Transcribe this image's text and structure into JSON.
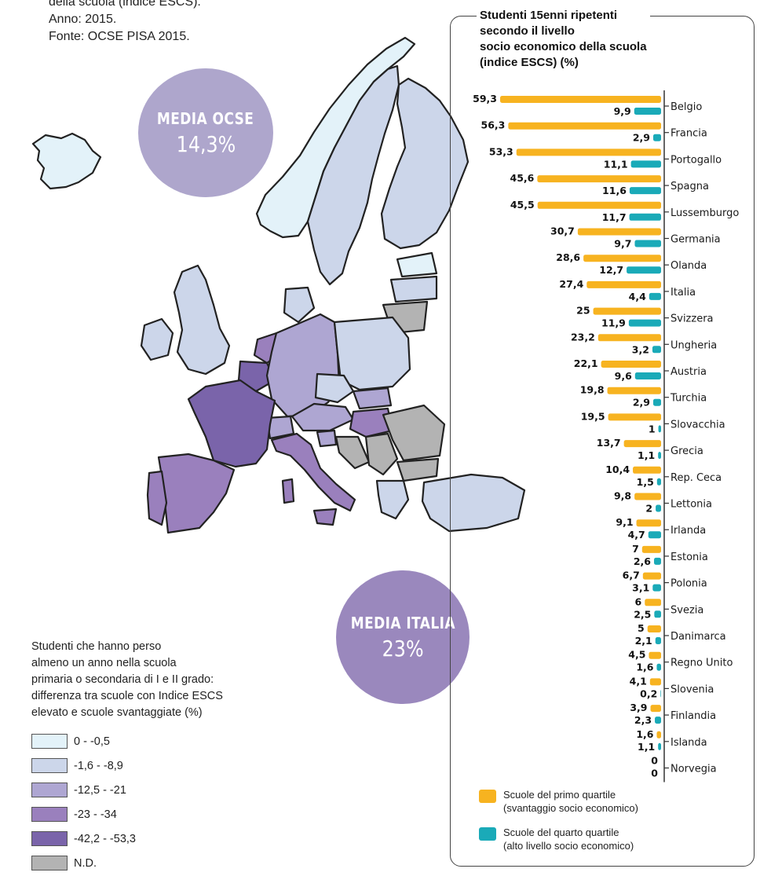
{
  "caption": {
    "line1": "della scuola (indice ESCS).",
    "line2": "Anno: 2015.",
    "line3": "Fonte: OCSE PISA 2015."
  },
  "bubbles": {
    "ocse": {
      "title": "MEDIA OCSE",
      "value": "14,3%"
    },
    "italia": {
      "title": "MEDIA ITALIA",
      "value": "23%"
    }
  },
  "map_legend": {
    "title_line1": "Studenti che hanno perso",
    "title_line2": "almeno un anno nella scuola",
    "title_line3": "primaria o secondaria di I e II grado:",
    "title_line4": "differenza tra scuole con Indice ESCS",
    "title_line5": "elevato e scuole svantaggiate (%)",
    "classes": [
      {
        "label": "0 - -0,5",
        "color": "#e3f2f9"
      },
      {
        "label": "-1,6 - -8,9",
        "color": "#ccd6ea"
      },
      {
        "label": "-12,5 - -21",
        "color": "#aea6d2"
      },
      {
        "label": "-23 - -34",
        "color": "#9a80bd"
      },
      {
        "label": "-42,2 - -53,3",
        "color": "#7a64aa"
      },
      {
        "label": "N.D.",
        "color": "#b3b3b3"
      }
    ]
  },
  "colors": {
    "first_quartile": "#f7b320",
    "fourth_quartile": "#1aaab8",
    "sea_border": "#1f1f1f"
  },
  "chart_title": {
    "line1": "Studenti 15enni ripetenti",
    "line2": "secondo il livello",
    "line3": "socio economico della scuola",
    "line4": "(indice ESCS) (%)"
  },
  "chart_data": {
    "type": "bar",
    "orientation": "horizontal",
    "title": "Studenti 15enni ripetenti secondo il livello socio economico della scuola (indice ESCS) (%)",
    "categories": [
      "Belgio",
      "Francia",
      "Portogallo",
      "Spagna",
      "Lussemburgo",
      "Germania",
      "Olanda",
      "Italia",
      "Svizzera",
      "Ungheria",
      "Austria",
      "Turchia",
      "Slovacchia",
      "Grecia",
      "Rep. Ceca",
      "Lettonia",
      "Irlanda",
      "Estonia",
      "Polonia",
      "Svezia",
      "Danimarca",
      "Regno Unito",
      "Slovenia",
      "Finlandia",
      "Islanda",
      "Norvegia"
    ],
    "series": [
      {
        "name": "Scuole del primo quartile",
        "values": [
          59.3,
          56.3,
          53.3,
          45.6,
          45.5,
          30.7,
          28.6,
          27.4,
          25,
          23.2,
          22.1,
          19.8,
          19.5,
          13.7,
          10.4,
          9.8,
          9.1,
          7,
          6.7,
          6,
          5,
          4.5,
          4.1,
          3.9,
          1.6,
          0
        ],
        "labels": [
          "59,3",
          "56,3",
          "53,3",
          "45,6",
          "45,5",
          "30,7",
          "28,6",
          "27,4",
          "25",
          "23,2",
          "22,1",
          "19,8",
          "19,5",
          "13,7",
          "10,4",
          "9,8",
          "9,1",
          "7",
          "6,7",
          "6",
          "5",
          "4,5",
          "4,1",
          "3,9",
          "1,6",
          "0"
        ]
      },
      {
        "name": "Scuole del quarto quartile",
        "values": [
          9.9,
          2.9,
          11.1,
          11.6,
          11.7,
          9.7,
          12.7,
          4.4,
          11.9,
          3.2,
          9.6,
          2.9,
          1,
          1.1,
          1.5,
          2,
          4.7,
          2.6,
          3.1,
          2.5,
          2.1,
          1.6,
          0.2,
          2.3,
          1.1,
          0
        ],
        "labels": [
          "9,9",
          "2,9",
          "11,1",
          "11,6",
          "11,7",
          "9,7",
          "12,7",
          "4,4",
          "11,9",
          "3,2",
          "9,6",
          "2,9",
          "1",
          "1,1",
          "1,5",
          "2",
          "4,7",
          "2,6",
          "3,1",
          "2,5",
          "2,1",
          "1,6",
          "0,2",
          "2,3",
          "1,1",
          "0"
        ]
      }
    ],
    "xlim": [
      0,
      60
    ]
  },
  "chart_legend": {
    "first_line1": "Scuole del primo quartile",
    "first_line2": "(svantaggio socio economico)",
    "fourth_line1": "Scuole del quarto quartile",
    "fourth_line2": "(alto livello socio economico)"
  }
}
